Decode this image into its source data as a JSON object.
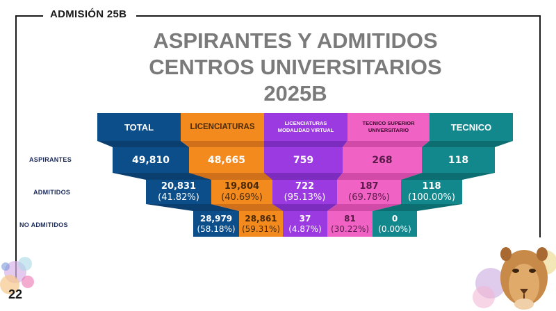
{
  "header": {
    "badge": "ADMISIÓN 25B"
  },
  "title": {
    "line1": "ASPIRANTES Y ADMITIDOS",
    "line2": "CENTROS UNIVERSITARIOS",
    "line3": "2025B"
  },
  "columns": [
    {
      "label": "TOTAL",
      "color": "#0b4e8a"
    },
    {
      "label": "LICENCIATURAS",
      "color": "#f28a1e"
    },
    {
      "label": "LICENCIATURAS MODALIDAD VIRTUAL",
      "color": "#9b3ae0"
    },
    {
      "label": "TECNICO SUPERIOR UNIVERSITARIO",
      "color": "#f062c4"
    },
    {
      "label": "TECNICO",
      "color": "#12878c"
    }
  ],
  "rows": {
    "aspirantes": {
      "label": "ASPIRANTES",
      "values": [
        "49,810",
        "48,665",
        "759",
        "268",
        "118"
      ]
    },
    "admitidos": {
      "label": "ADMITIDOS",
      "values": [
        "20,831",
        "19,804",
        "722",
        "187",
        "118"
      ],
      "pcts": [
        "(41.82%)",
        "(40.69%)",
        "(95.13%)",
        "(69.78%)",
        "(100.00%)"
      ]
    },
    "no_admitidos": {
      "label": "NO ADMITIDOS",
      "values": [
        "28,979",
        "28,861",
        "37",
        "81",
        "0"
      ],
      "pcts": [
        "(58.18%)",
        "(59.31%)",
        "(4.87%)",
        "(30.22%)",
        "(0.00%)"
      ]
    }
  },
  "page_number": "22"
}
